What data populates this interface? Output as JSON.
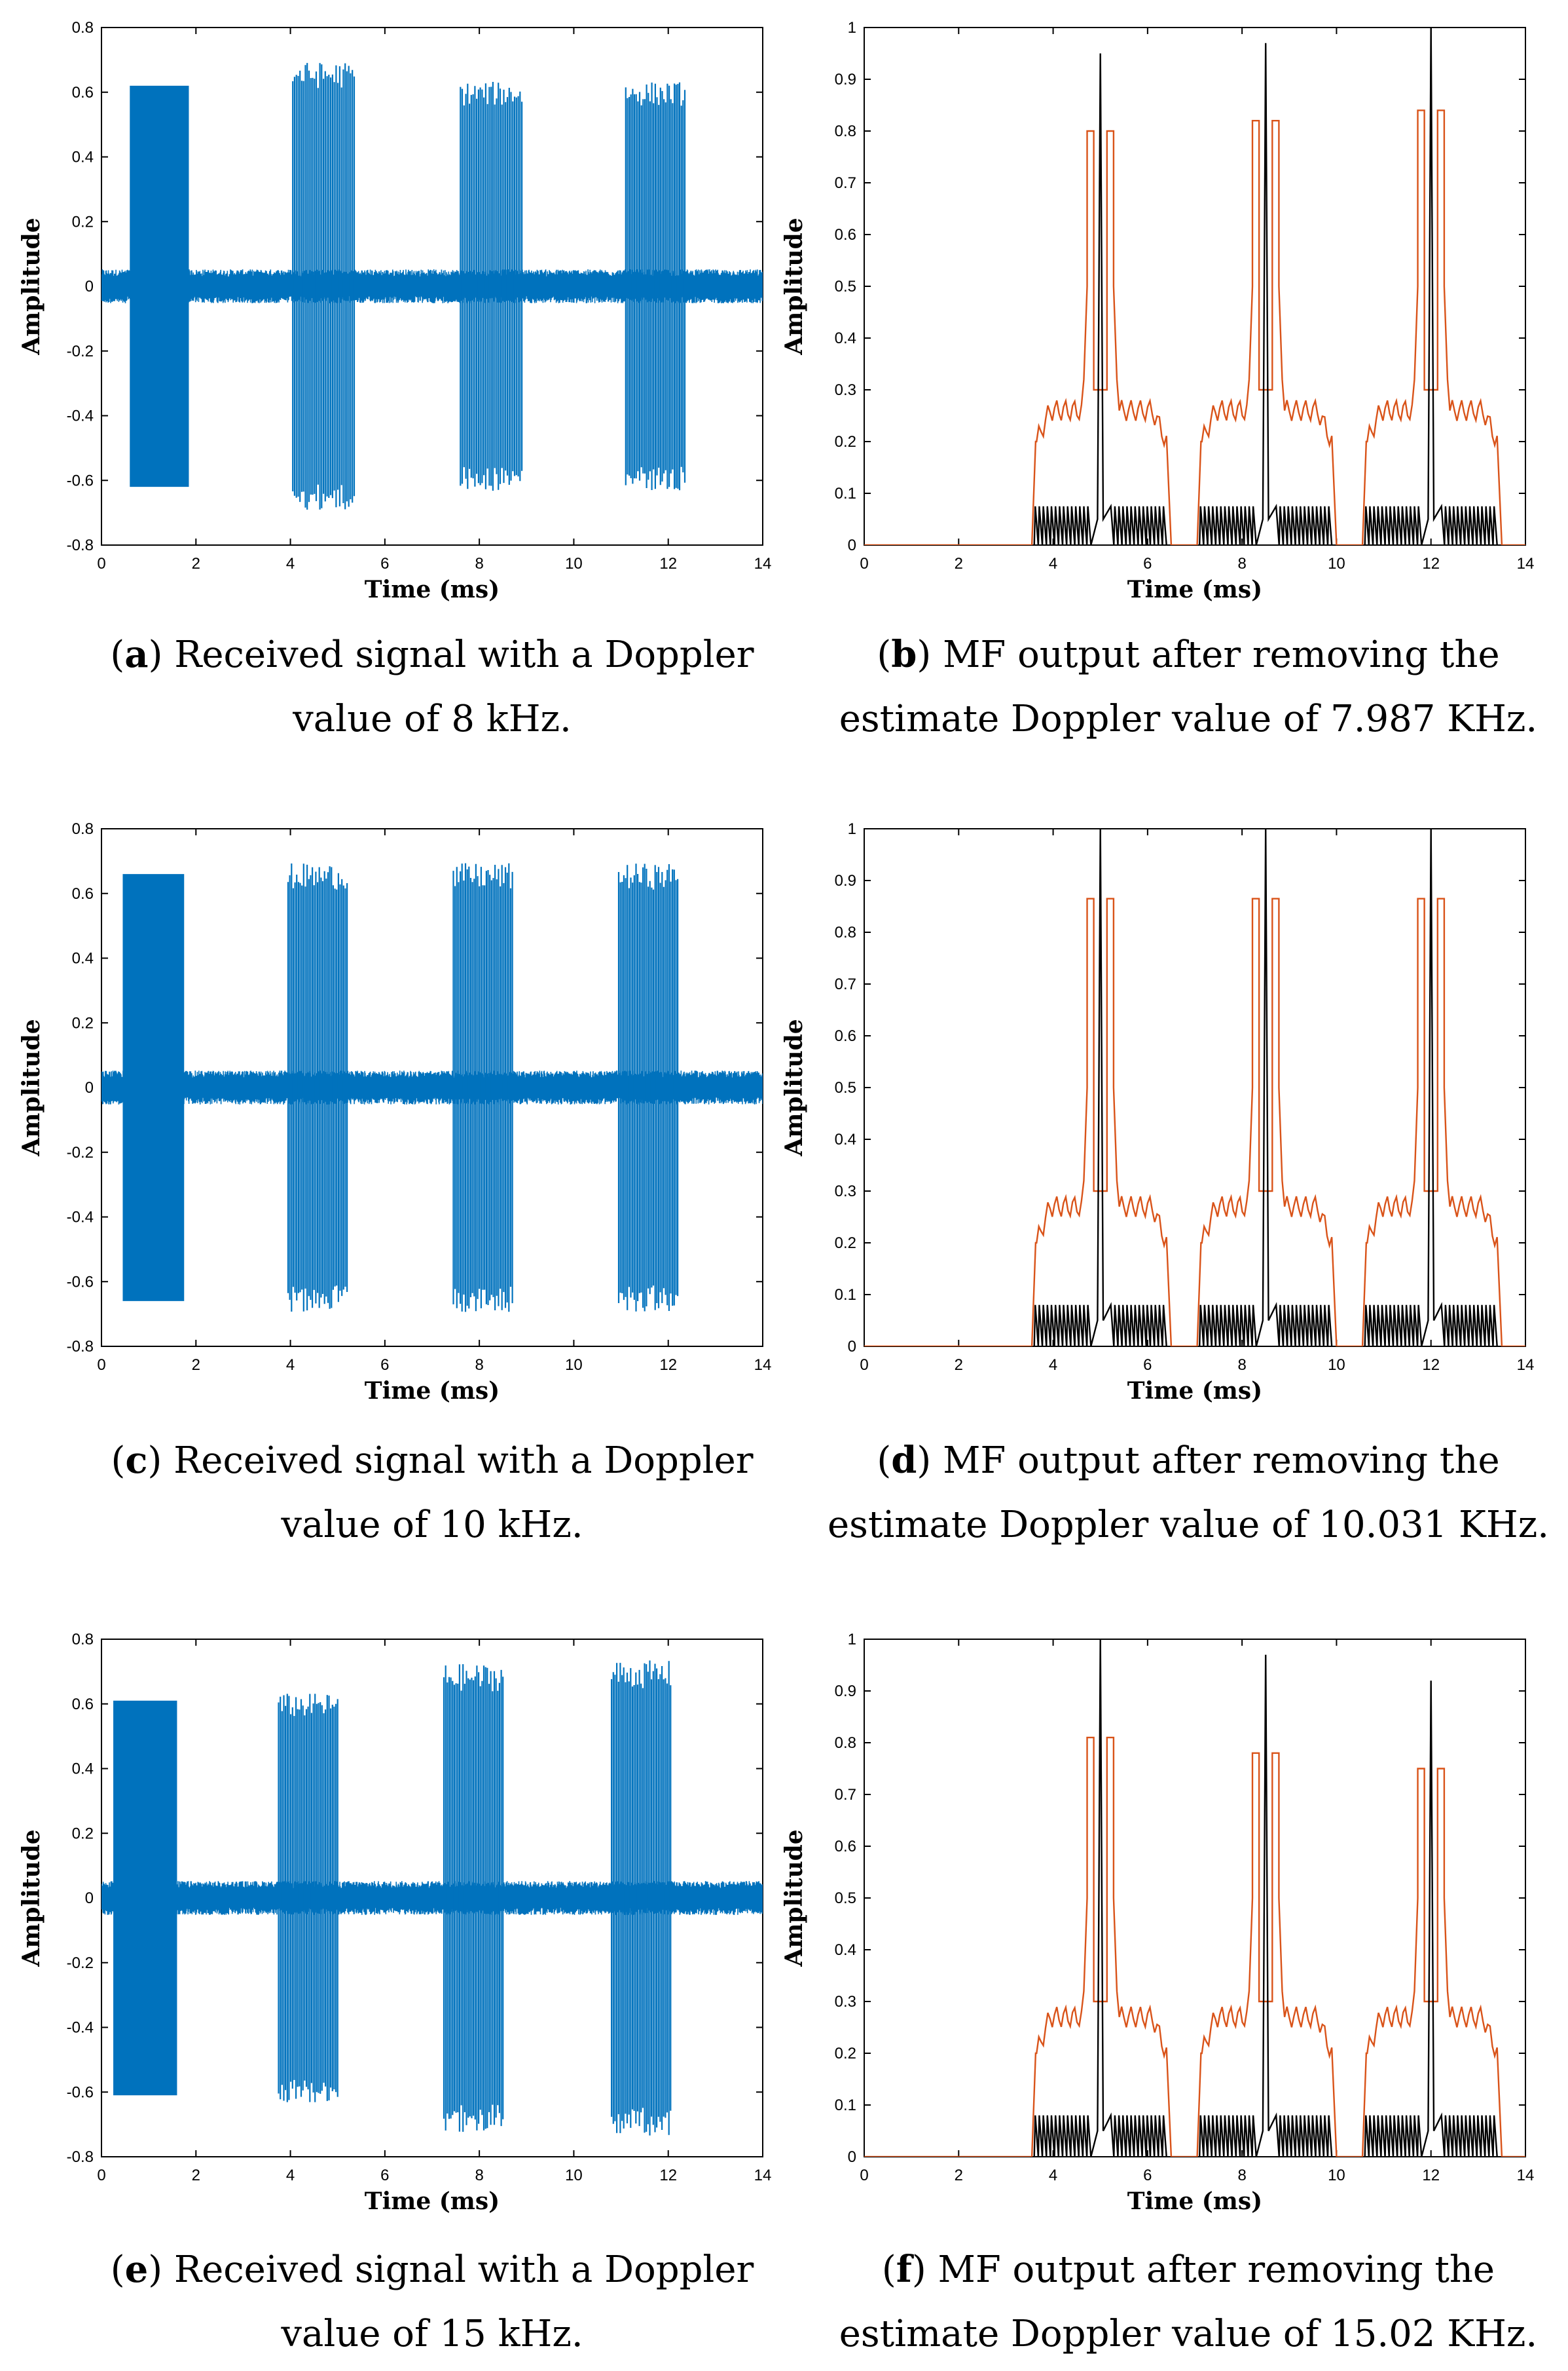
{
  "colors": {
    "signal": "#0072BD",
    "envelope": "#D95319",
    "mf": "#000000"
  },
  "chart_data": [
    {
      "panel": "a",
      "type": "line",
      "title": "",
      "xlabel": "Time (ms)",
      "ylabel": "Amplitude",
      "xlim": [
        0,
        14
      ],
      "ylim": [
        -0.8,
        0.8
      ],
      "xticks": [
        "0",
        "2",
        "4",
        "6",
        "8",
        "10",
        "12",
        "14"
      ],
      "yticks": [
        "-0.8",
        "-0.6",
        "-0.4",
        "-0.2",
        "0",
        "0.2",
        "0.4",
        "0.6",
        "0.8"
      ],
      "noise_level": 0.05,
      "bursts": [
        {
          "start": 0.6,
          "end": 1.85,
          "amp": 0.62,
          "dense": true
        },
        {
          "start": 4.05,
          "end": 5.35,
          "amp": 0.68,
          "dense": false
        },
        {
          "start": 7.6,
          "end": 8.9,
          "amp": 0.62,
          "dense": false
        },
        {
          "start": 11.1,
          "end": 12.35,
          "amp": 0.62,
          "dense": false
        }
      ],
      "caption_label": "a",
      "caption_line1": "Received signal with a Doppler",
      "caption_line2": "value of 8 kHz."
    },
    {
      "panel": "b",
      "type": "line",
      "title": "",
      "xlabel": "Time (ms)",
      "ylabel": "Amplitude",
      "xlim": [
        0,
        14
      ],
      "ylim": [
        0,
        1
      ],
      "xticks": [
        "0",
        "2",
        "4",
        "6",
        "8",
        "10",
        "12",
        "14"
      ],
      "yticks": [
        "0",
        "0.1",
        "0.2",
        "0.3",
        "0.4",
        "0.5",
        "0.6",
        "0.7",
        "0.8",
        "0.9",
        "1"
      ],
      "series": [
        {
          "name": "MF output",
          "peaks": [
            {
              "t": 5.0,
              "h": 0.95
            },
            {
              "t": 8.5,
              "h": 0.97
            },
            {
              "t": 12.0,
              "h": 1.0
            }
          ],
          "sidelobe": 0.075
        },
        {
          "name": "Envelope",
          "centers": [
            5.0,
            8.5,
            12.0
          ],
          "top": [
            0.8,
            0.82,
            0.84
          ],
          "shoulder": 0.26,
          "base": 0.2
        }
      ],
      "caption_label": "b",
      "caption_line1": "MF output after removing the",
      "caption_line2": "estimate Doppler value of 7.987 KHz."
    },
    {
      "panel": "c",
      "type": "line",
      "title": "",
      "xlabel": "Time (ms)",
      "ylabel": "Amplitude",
      "xlim": [
        0,
        14
      ],
      "ylim": [
        -0.8,
        0.8
      ],
      "xticks": [
        "0",
        "2",
        "4",
        "6",
        "8",
        "10",
        "12",
        "14"
      ],
      "yticks": [
        "-0.8",
        "-0.6",
        "-0.4",
        "-0.2",
        "0",
        "0.2",
        "0.4",
        "0.6",
        "0.8"
      ],
      "noise_level": 0.05,
      "bursts": [
        {
          "start": 0.45,
          "end": 1.75,
          "amp": 0.66,
          "dense": true
        },
        {
          "start": 3.95,
          "end": 5.2,
          "amp": 0.68,
          "dense": false
        },
        {
          "start": 7.45,
          "end": 8.7,
          "amp": 0.68,
          "dense": false
        },
        {
          "start": 10.95,
          "end": 12.2,
          "amp": 0.68,
          "dense": false
        }
      ],
      "caption_label": "c",
      "caption_line1": "Received signal with a Doppler",
      "caption_line2": "value of 10 kHz."
    },
    {
      "panel": "d",
      "type": "line",
      "title": "",
      "xlabel": "Time (ms)",
      "ylabel": "Amplitude",
      "xlim": [
        0,
        14
      ],
      "ylim": [
        0,
        1
      ],
      "xticks": [
        "0",
        "2",
        "4",
        "6",
        "8",
        "10",
        "12",
        "14"
      ],
      "yticks": [
        "0",
        "0.1",
        "0.2",
        "0.3",
        "0.4",
        "0.5",
        "0.6",
        "0.7",
        "0.8",
        "0.9",
        "1"
      ],
      "series": [
        {
          "name": "MF output",
          "peaks": [
            {
              "t": 5.0,
              "h": 1.0
            },
            {
              "t": 8.5,
              "h": 1.0
            },
            {
              "t": 12.0,
              "h": 1.0
            }
          ],
          "sidelobe": 0.08
        },
        {
          "name": "Envelope",
          "centers": [
            5.0,
            8.5,
            12.0
          ],
          "top": [
            0.865,
            0.865,
            0.865
          ],
          "shoulder": 0.27,
          "base": 0.2
        }
      ],
      "caption_label": "d",
      "caption_line1": "MF output after removing the",
      "caption_line2": "estimate Doppler value of 10.031 KHz."
    },
    {
      "panel": "e",
      "type": "line",
      "title": "",
      "xlabel": "Time (ms)",
      "ylabel": "Amplitude",
      "xlim": [
        0,
        14
      ],
      "ylim": [
        -0.8,
        0.8
      ],
      "xticks": [
        "0",
        "2",
        "4",
        "6",
        "8",
        "10",
        "12",
        "14"
      ],
      "yticks": [
        "-0.8",
        "-0.6",
        "-0.4",
        "-0.2",
        "0",
        "0.2",
        "0.4",
        "0.6",
        "0.8"
      ],
      "noise_level": 0.05,
      "bursts": [
        {
          "start": 0.25,
          "end": 1.6,
          "amp": 0.61,
          "dense": true
        },
        {
          "start": 3.75,
          "end": 5.0,
          "amp": 0.62,
          "dense": false
        },
        {
          "start": 7.25,
          "end": 8.5,
          "amp": 0.71,
          "dense": false
        },
        {
          "start": 10.8,
          "end": 12.05,
          "amp": 0.72,
          "dense": false
        }
      ],
      "caption_label": "e",
      "caption_line1": "Received signal with a Doppler",
      "caption_line2": "value of 15 kHz."
    },
    {
      "panel": "f",
      "type": "line",
      "title": "",
      "xlabel": "Time (ms)",
      "ylabel": "Amplitude",
      "xlim": [
        0,
        14
      ],
      "ylim": [
        0,
        1
      ],
      "xticks": [
        "0",
        "2",
        "4",
        "6",
        "8",
        "10",
        "12",
        "14"
      ],
      "yticks": [
        "0",
        "0.1",
        "0.2",
        "0.3",
        "0.4",
        "0.5",
        "0.6",
        "0.7",
        "0.8",
        "0.9",
        "1"
      ],
      "series": [
        {
          "name": "MF output",
          "peaks": [
            {
              "t": 5.0,
              "h": 1.0
            },
            {
              "t": 8.5,
              "h": 0.97
            },
            {
              "t": 12.0,
              "h": 0.92
            }
          ],
          "sidelobe": 0.08
        },
        {
          "name": "Envelope",
          "centers": [
            5.0,
            8.5,
            12.0
          ],
          "top": [
            0.81,
            0.78,
            0.75
          ],
          "shoulder": 0.27,
          "base": 0.2
        }
      ],
      "caption_label": "f",
      "caption_line1": "MF output after removing the",
      "caption_line2": "estimate Doppler value of 15.02 KHz."
    }
  ]
}
